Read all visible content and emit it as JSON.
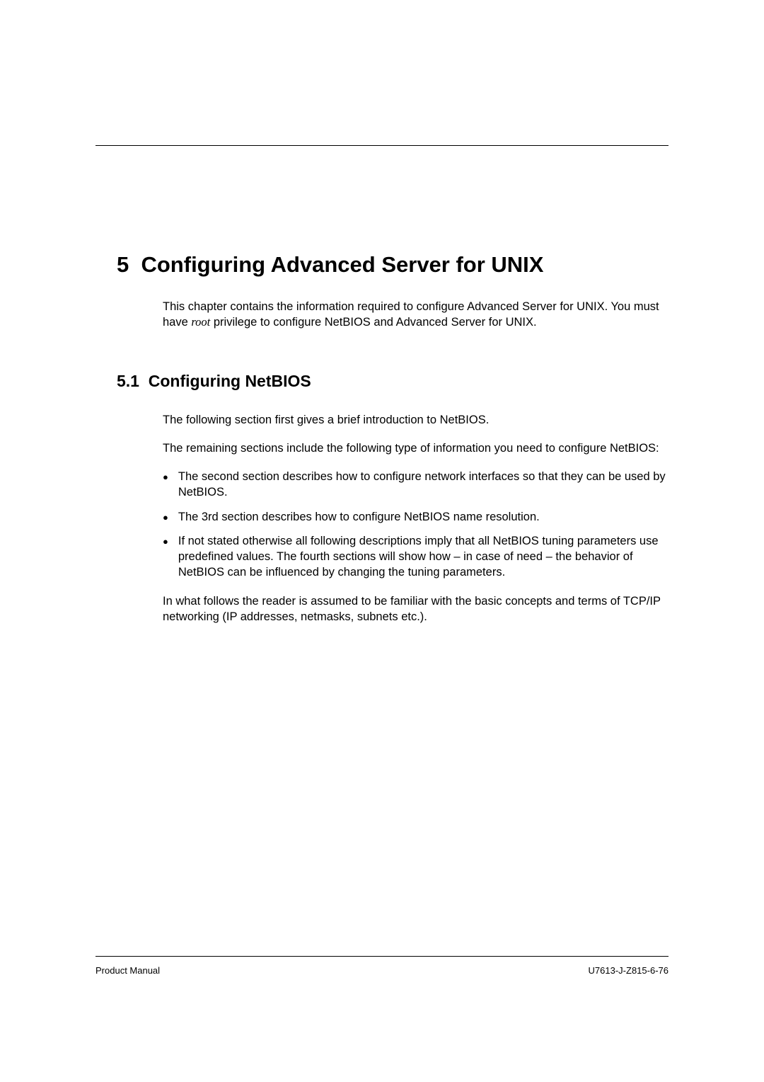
{
  "chapter": {
    "number": "5",
    "title": "Configuring Advanced Server for UNIX",
    "intro_part1": "This chapter contains the information required to configure Advanced Server for UNIX. You must have ",
    "intro_italic": "root",
    "intro_part2": " privilege to configure NetBIOS and Advanced Server for UNIX."
  },
  "section": {
    "number": "5.1",
    "title": "Configuring NetBIOS",
    "para1": "The following section first gives a brief introduction to NetBIOS.",
    "para2": "The remaining sections include the following type of information you need to configure NetBIOS:",
    "bullets": [
      "The second section describes how to configure network interfaces so that they can be used by NetBIOS.",
      "The 3rd section describes how to configure NetBIOS name resolution.",
      "If not stated otherwise all following descriptions imply that all NetBIOS tuning parameters use predefined values. The fourth sections will show how – in case of need – the behavior of NetBIOS can be influenced by changing the tuning parameters."
    ],
    "para3": "In what follows the reader is assumed to be familiar with the basic concepts and terms of TCP/IP networking (IP addresses, netmasks, subnets etc.)."
  },
  "footer": {
    "left": "Product Manual",
    "right": "U7613-J-Z815-6-76"
  }
}
